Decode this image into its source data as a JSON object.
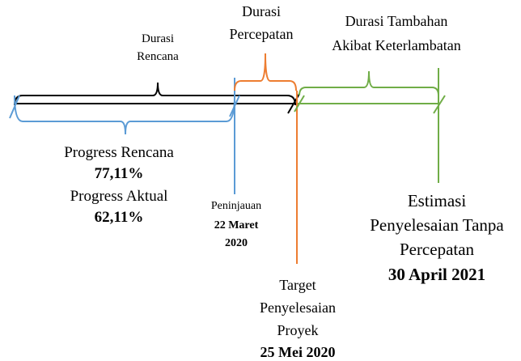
{
  "durasi_rencana": [
    "Durasi",
    "Rencana"
  ],
  "durasi_percepatan": [
    "Durasi",
    "Percepatan"
  ],
  "durasi_tambahan": [
    "Durasi Tambahan",
    "Akibat Keterlambatan"
  ],
  "progress": {
    "rencana_label": "Progress Rencana",
    "rencana_value": "77,11%",
    "aktual_label": "Progress Aktual",
    "aktual_value": "62,11%"
  },
  "peninjauan": {
    "label": "Peninjauan",
    "date": [
      "22 Maret",
      "2020"
    ]
  },
  "target": {
    "label": [
      "Target",
      "Penyelesaian",
      "Proyek"
    ],
    "date": "25 Mei 2020"
  },
  "estimasi": {
    "label": [
      "Estimasi",
      "Penyelesaian Tanpa",
      "Percepatan"
    ],
    "date": "30 April 2021"
  }
}
